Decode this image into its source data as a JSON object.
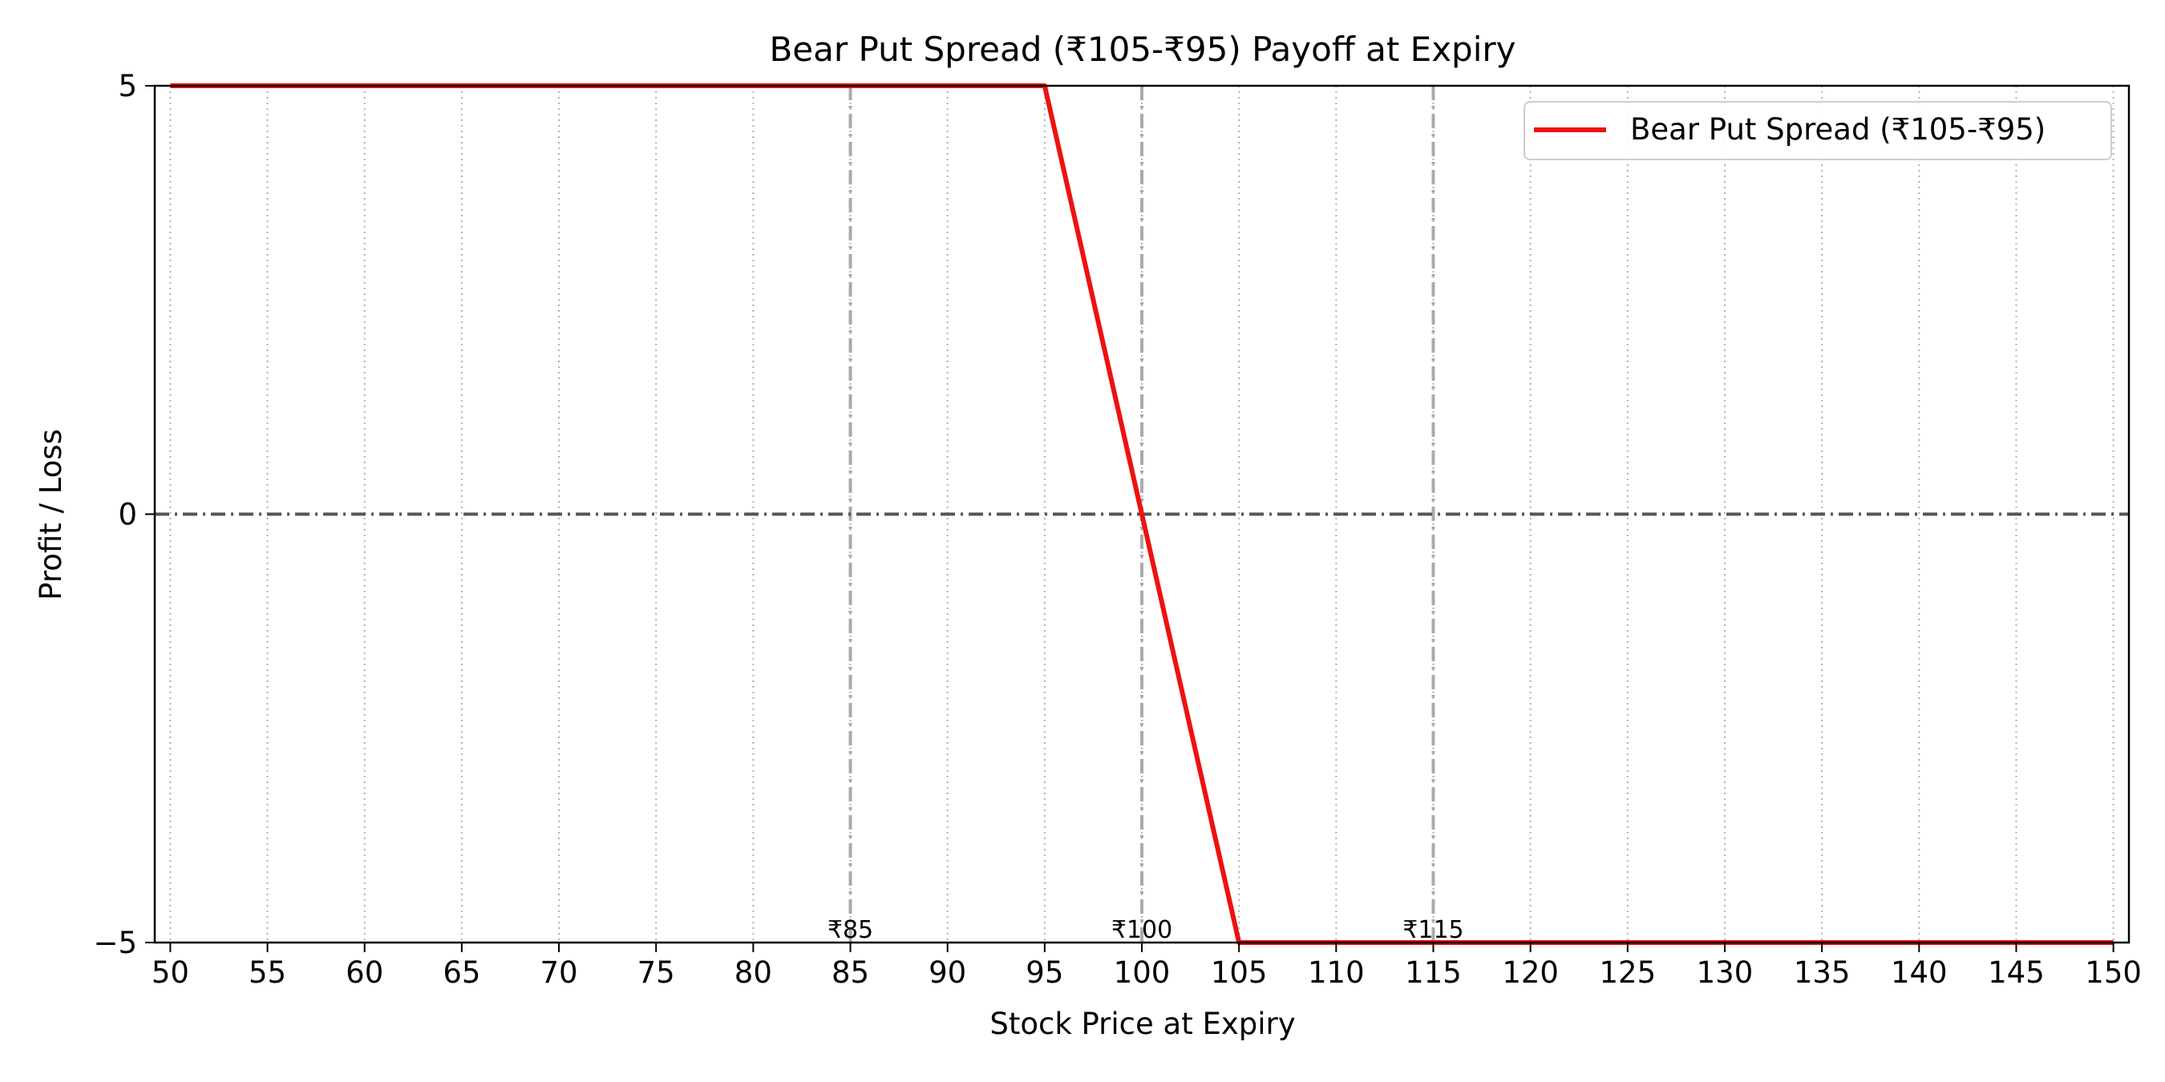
{
  "chart_data": {
    "type": "line",
    "title": "Bear Put Spread (₹105-₹95) Payoff at Expiry",
    "xlabel": "Stock Price at Expiry",
    "ylabel": "Profit / Loss",
    "xlim": [
      49.2,
      150.8
    ],
    "ylim": [
      -5,
      5
    ],
    "x_ticks": [
      50,
      55,
      60,
      65,
      70,
      75,
      80,
      85,
      90,
      95,
      100,
      105,
      110,
      115,
      120,
      125,
      130,
      135,
      140,
      145,
      150
    ],
    "y_ticks": [
      5,
      0,
      -5
    ],
    "y_tick_labels": [
      "5",
      "0",
      "−5"
    ],
    "grid": "x-dotted",
    "legend_position": "top-right",
    "series": [
      {
        "name": "Bear Put Spread (₹105-₹95)",
        "color": "#ee1111",
        "x": [
          50,
          95,
          105,
          150
        ],
        "y": [
          5,
          5,
          -5,
          -5
        ]
      }
    ],
    "reference_lines": {
      "horizontal": [
        {
          "y": 0,
          "color": "#555555",
          "style": "dashed"
        }
      ],
      "vertical": [
        {
          "x": 85,
          "label": "₹85",
          "color": "#aaaaaa",
          "style": "dashed"
        },
        {
          "x": 100,
          "label": "₹100",
          "color": "#aaaaaa",
          "style": "dashed"
        },
        {
          "x": 115,
          "label": "₹115",
          "color": "#aaaaaa",
          "style": "dashed"
        }
      ]
    }
  }
}
